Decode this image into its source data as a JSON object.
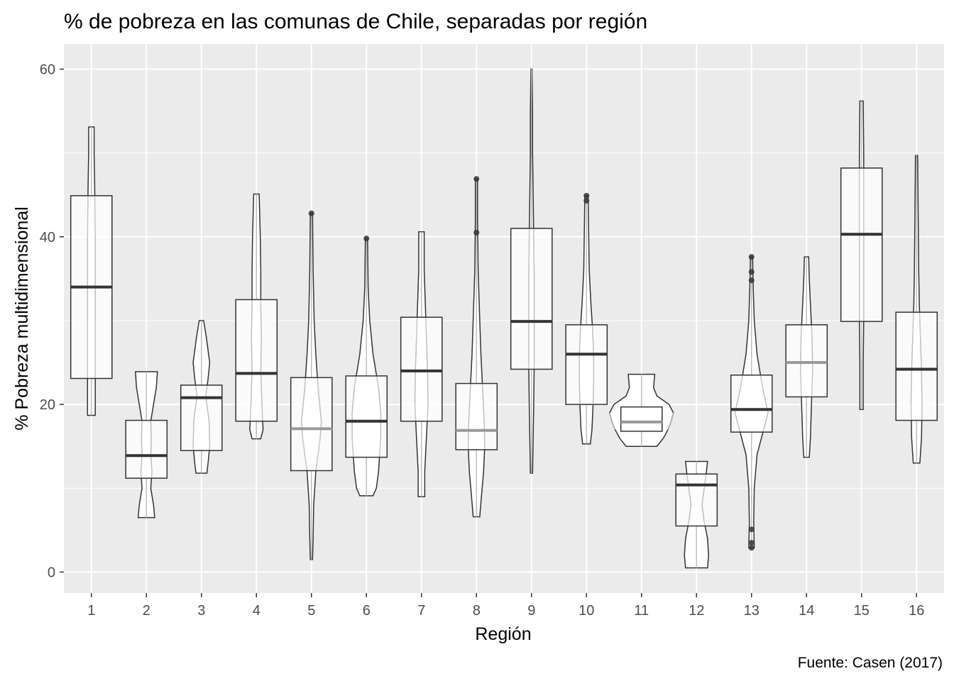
{
  "chart_data": {
    "type": "box",
    "title": "% de pobreza en las comunas de Chile, separadas por región",
    "caption": "Fuente: Casen (2017)",
    "xlabel": "Región",
    "ylabel": "% Pobreza multidimensional",
    "categories": [
      "1",
      "2",
      "3",
      "4",
      "5",
      "6",
      "7",
      "8",
      "9",
      "10",
      "11",
      "12",
      "13",
      "14",
      "15",
      "16"
    ],
    "y_ticks": [
      0,
      20,
      40,
      60
    ],
    "ylim": [
      -2.5,
      63
    ],
    "grid": true,
    "background": "#ebebeb",
    "grid_color": "#ffffff",
    "box_fill": "#ffffff",
    "outline_color": "#333333",
    "violin_inner_color": "#bfbfbf",
    "median_dark": "#333333",
    "median_light": "#999999",
    "boxes": [
      {
        "region": "1",
        "q1": 23.1,
        "median": 34.0,
        "q3": 44.9,
        "min": 18.7,
        "max": 53.1,
        "median_shade": "dark",
        "outliers": []
      },
      {
        "region": "2",
        "q1": 11.2,
        "median": 13.9,
        "q3": 18.1,
        "min": 6.5,
        "max": 23.9,
        "median_shade": "dark",
        "outliers": []
      },
      {
        "region": "3",
        "q1": 14.5,
        "median": 20.8,
        "q3": 22.3,
        "min": 11.8,
        "max": 30.0,
        "median_shade": "dark",
        "outliers": []
      },
      {
        "region": "4",
        "q1": 18.0,
        "median": 23.7,
        "q3": 32.5,
        "min": 15.9,
        "max": 45.1,
        "median_shade": "dark",
        "outliers": []
      },
      {
        "region": "5",
        "q1": 12.1,
        "median": 17.1,
        "q3": 23.2,
        "min": 1.5,
        "max": 42.8,
        "median_shade": "light",
        "outliers": [
          42.8
        ]
      },
      {
        "region": "6",
        "q1": 13.7,
        "median": 18.0,
        "q3": 23.4,
        "min": 9.1,
        "max": 39.8,
        "median_shade": "dark",
        "outliers": [
          39.8
        ]
      },
      {
        "region": "7",
        "q1": 18.0,
        "median": 24.0,
        "q3": 30.4,
        "min": 9.0,
        "max": 40.6,
        "median_shade": "dark",
        "outliers": []
      },
      {
        "region": "8",
        "q1": 14.6,
        "median": 16.9,
        "q3": 22.5,
        "min": 6.6,
        "max": 46.9,
        "median_shade": "light",
        "outliers": [
          46.9,
          40.5
        ]
      },
      {
        "region": "9",
        "q1": 24.2,
        "median": 29.9,
        "q3": 41.0,
        "min": 11.8,
        "max": 60.0,
        "median_shade": "dark",
        "outliers": []
      },
      {
        "region": "10",
        "q1": 20.0,
        "median": 26.0,
        "q3": 29.5,
        "min": 15.3,
        "max": 44.9,
        "median_shade": "dark",
        "outliers": [
          44.9,
          44.3
        ]
      },
      {
        "region": "11",
        "q1": 16.8,
        "median": 17.9,
        "q3": 19.7,
        "min": 15.0,
        "max": 23.6,
        "median_shade": "light",
        "outliers": []
      },
      {
        "region": "12",
        "q1": 5.5,
        "median": 10.4,
        "q3": 11.7,
        "min": 0.5,
        "max": 13.2,
        "median_shade": "dark",
        "outliers": []
      },
      {
        "region": "13",
        "q1": 16.7,
        "median": 19.4,
        "q3": 23.5,
        "min": 2.9,
        "max": 37.6,
        "median_shade": "dark",
        "outliers": [
          37.6,
          35.8,
          34.8,
          5.1,
          3.5,
          2.9
        ]
      },
      {
        "region": "14",
        "q1": 20.9,
        "median": 25.0,
        "q3": 29.5,
        "min": 13.7,
        "max": 37.6,
        "median_shade": "light",
        "outliers": []
      },
      {
        "region": "15",
        "q1": 29.9,
        "median": 40.3,
        "q3": 48.2,
        "min": 19.4,
        "max": 56.2,
        "median_shade": "dark",
        "outliers": []
      },
      {
        "region": "16",
        "q1": 18.1,
        "median": 24.2,
        "q3": 31.0,
        "min": 13.0,
        "max": 49.7,
        "median_shade": "dark",
        "outliers": []
      }
    ],
    "violins": [
      {
        "region": "1",
        "profile": [
          [
            18.7,
            0.07
          ],
          [
            22,
            0.07
          ],
          [
            30,
            0.07
          ],
          [
            40,
            0.07
          ],
          [
            46,
            0.06
          ],
          [
            50,
            0.05
          ],
          [
            53.1,
            0.05
          ]
        ]
      },
      {
        "region": "2",
        "profile": [
          [
            6.5,
            0.15
          ],
          [
            8,
            0.13
          ],
          [
            10,
            0.08
          ],
          [
            12,
            0.1
          ],
          [
            14,
            0.08
          ],
          [
            16,
            0.09
          ],
          [
            18,
            0.08
          ],
          [
            20,
            0.13
          ],
          [
            22,
            0.18
          ],
          [
            23.9,
            0.2
          ]
        ]
      },
      {
        "region": "3",
        "profile": [
          [
            11.8,
            0.1
          ],
          [
            13,
            0.12
          ],
          [
            15,
            0.15
          ],
          [
            18,
            0.14
          ],
          [
            21,
            0.08
          ],
          [
            23,
            0.12
          ],
          [
            25,
            0.15
          ],
          [
            28,
            0.09
          ],
          [
            30,
            0.04
          ]
        ]
      },
      {
        "region": "4",
        "profile": [
          [
            15.9,
            0.08
          ],
          [
            17,
            0.12
          ],
          [
            20,
            0.1
          ],
          [
            24,
            0.08
          ],
          [
            28,
            0.09
          ],
          [
            32,
            0.08
          ],
          [
            36,
            0.08
          ],
          [
            40,
            0.07
          ],
          [
            45.1,
            0.05
          ]
        ]
      },
      {
        "region": "5",
        "profile": [
          [
            1.5,
            0.02
          ],
          [
            4,
            0.03
          ],
          [
            8,
            0.04
          ],
          [
            12,
            0.08
          ],
          [
            16,
            0.16
          ],
          [
            18,
            0.18
          ],
          [
            22,
            0.12
          ],
          [
            26,
            0.08
          ],
          [
            30,
            0.05
          ],
          [
            36,
            0.03
          ],
          [
            42.8,
            0.02
          ]
        ]
      },
      {
        "region": "6",
        "profile": [
          [
            9.1,
            0.12
          ],
          [
            10,
            0.18
          ],
          [
            12,
            0.22
          ],
          [
            16,
            0.26
          ],
          [
            19,
            0.26
          ],
          [
            22,
            0.22
          ],
          [
            26,
            0.12
          ],
          [
            30,
            0.06
          ],
          [
            34,
            0.03
          ],
          [
            39.8,
            0.02
          ]
        ]
      },
      {
        "region": "7",
        "profile": [
          [
            9.0,
            0.06
          ],
          [
            12,
            0.06
          ],
          [
            16,
            0.09
          ],
          [
            20,
            0.12
          ],
          [
            24,
            0.11
          ],
          [
            28,
            0.09
          ],
          [
            32,
            0.07
          ],
          [
            36,
            0.05
          ],
          [
            40.6,
            0.05
          ]
        ]
      },
      {
        "region": "8",
        "profile": [
          [
            6.6,
            0.06
          ],
          [
            9,
            0.09
          ],
          [
            12,
            0.13
          ],
          [
            15,
            0.15
          ],
          [
            18,
            0.14
          ],
          [
            22,
            0.11
          ],
          [
            26,
            0.08
          ],
          [
            30,
            0.06
          ],
          [
            36,
            0.03
          ],
          [
            42,
            0.02
          ],
          [
            46.9,
            0.02
          ]
        ]
      },
      {
        "region": "9",
        "profile": [
          [
            11.8,
            0.02
          ],
          [
            16,
            0.03
          ],
          [
            20,
            0.04
          ],
          [
            25,
            0.05
          ],
          [
            30,
            0.05
          ],
          [
            35,
            0.05
          ],
          [
            40,
            0.04
          ],
          [
            45,
            0.03
          ],
          [
            50,
            0.02
          ],
          [
            55,
            0.02
          ],
          [
            60,
            0.01
          ]
        ]
      },
      {
        "region": "10",
        "profile": [
          [
            15.3,
            0.07
          ],
          [
            17,
            0.1
          ],
          [
            20,
            0.12
          ],
          [
            23,
            0.13
          ],
          [
            26,
            0.13
          ],
          [
            29,
            0.11
          ],
          [
            32,
            0.08
          ],
          [
            36,
            0.05
          ],
          [
            40,
            0.04
          ],
          [
            44.9,
            0.03
          ]
        ]
      },
      {
        "region": "11",
        "profile": [
          [
            15.0,
            0.28
          ],
          [
            16,
            0.4
          ],
          [
            17,
            0.48
          ],
          [
            18,
            0.54
          ],
          [
            19,
            0.58
          ],
          [
            20,
            0.5
          ],
          [
            21,
            0.28
          ],
          [
            22,
            0.22
          ],
          [
            23.6,
            0.24
          ]
        ]
      },
      {
        "region": "12",
        "profile": [
          [
            0.5,
            0.2
          ],
          [
            2,
            0.22
          ],
          [
            4,
            0.2
          ],
          [
            6,
            0.14
          ],
          [
            8,
            0.1
          ],
          [
            10,
            0.14
          ],
          [
            12,
            0.18
          ],
          [
            13.2,
            0.2
          ]
        ]
      },
      {
        "region": "13",
        "profile": [
          [
            2.9,
            0.05
          ],
          [
            6,
            0.04
          ],
          [
            10,
            0.05
          ],
          [
            14,
            0.1
          ],
          [
            17,
            0.22
          ],
          [
            19,
            0.3
          ],
          [
            22,
            0.2
          ],
          [
            26,
            0.1
          ],
          [
            30,
            0.05
          ],
          [
            34,
            0.03
          ],
          [
            37.6,
            0.02
          ]
        ]
      },
      {
        "region": "14",
        "profile": [
          [
            13.7,
            0.05
          ],
          [
            16,
            0.07
          ],
          [
            20,
            0.09
          ],
          [
            24,
            0.11
          ],
          [
            28,
            0.1
          ],
          [
            32,
            0.07
          ],
          [
            35,
            0.05
          ],
          [
            37.6,
            0.04
          ]
        ]
      },
      {
        "region": "15",
        "profile": [
          [
            19.4,
            0.03
          ],
          [
            25,
            0.03
          ],
          [
            30,
            0.04
          ],
          [
            40,
            0.04
          ],
          [
            50,
            0.04
          ],
          [
            56.2,
            0.03
          ]
        ]
      },
      {
        "region": "16",
        "profile": [
          [
            13.0,
            0.06
          ],
          [
            16,
            0.09
          ],
          [
            20,
            0.1
          ],
          [
            24,
            0.09
          ],
          [
            28,
            0.07
          ],
          [
            32,
            0.05
          ],
          [
            36,
            0.04
          ],
          [
            42,
            0.03
          ],
          [
            49.7,
            0.02
          ]
        ]
      }
    ]
  }
}
